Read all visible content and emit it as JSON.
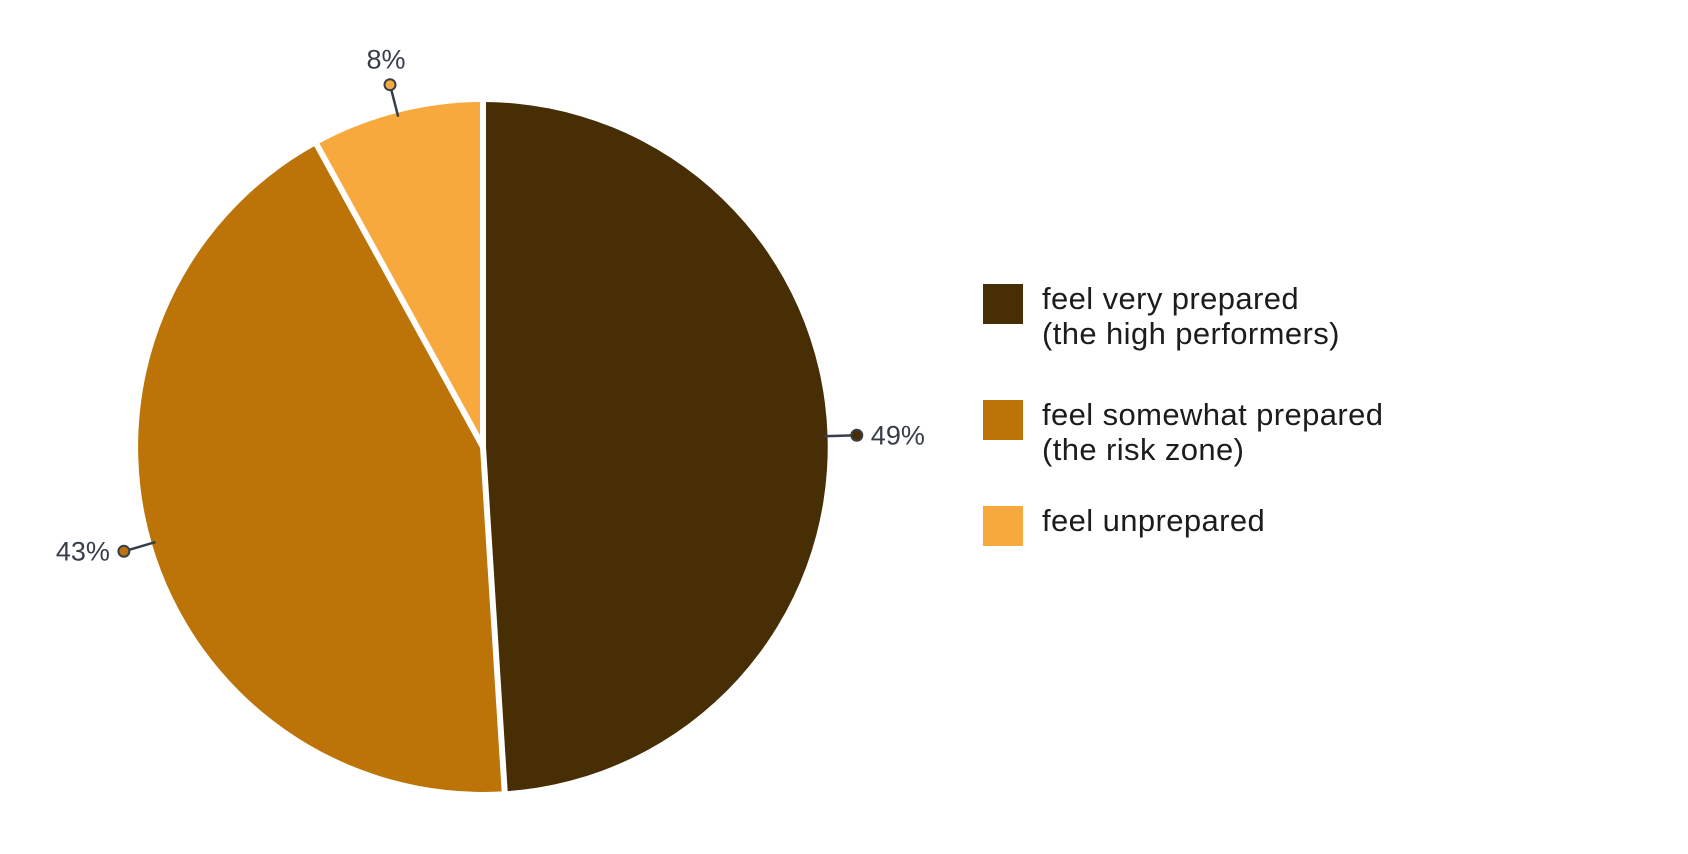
{
  "chart_data": {
    "type": "pie",
    "title": "",
    "unit": "%",
    "start_angle_deg": 0,
    "direction": "clockwise",
    "legend_position": "right",
    "label_style": "outside leader lines with dot markers",
    "categories": [
      "feel very prepared (the high performers)",
      "feel somewhat prepared (the risk zone)",
      "feel unprepared"
    ],
    "values": [
      49,
      43,
      8
    ],
    "slices": [
      {
        "id": "very-prepared",
        "label": "feel very prepared (the high performers)",
        "value": 49,
        "pct_label": "49%",
        "color": "#472E05"
      },
      {
        "id": "somewhat-prepared",
        "label": "feel somewhat prepared (the risk zone)",
        "value": 43,
        "pct_label": "43%",
        "color": "#BC7307"
      },
      {
        "id": "unprepared",
        "label": "feel unprepared",
        "value": 8,
        "pct_label": "8%",
        "color": "#F7A93E"
      }
    ]
  },
  "legend": {
    "items": [
      {
        "label_line1": "feel very prepared",
        "label_line2": "(the high performers)",
        "color": "#472E05"
      },
      {
        "label_line1": "feel somewhat prepared",
        "label_line2": "(the risk zone)",
        "color": "#BC7307"
      },
      {
        "label_line1": "feel unprepared",
        "label_line2": "",
        "color": "#F7A93E"
      }
    ]
  },
  "colors": {
    "background": "#FFFFFF",
    "label_text": "#363E4C",
    "legend_text": "#1C1C1C",
    "slice_gap": "#FFFFFF"
  }
}
